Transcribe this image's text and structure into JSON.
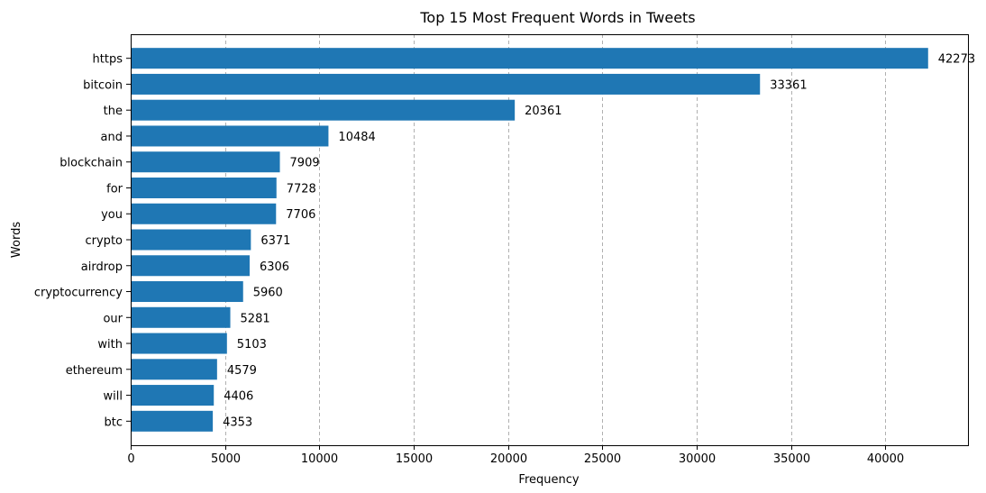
{
  "chart_data": {
    "type": "bar",
    "orientation": "horizontal",
    "title": "Top 15 Most Frequent Words in Tweets",
    "xlabel": "Frequency",
    "ylabel": "Words",
    "categories": [
      "https",
      "bitcoin",
      "the",
      "and",
      "blockchain",
      "for",
      "you",
      "crypto",
      "airdrop",
      "cryptocurrency",
      "our",
      "with",
      "ethereum",
      "will",
      "btc"
    ],
    "values": [
      42273,
      33361,
      20361,
      10484,
      7909,
      7728,
      7706,
      6371,
      6306,
      5960,
      5281,
      5103,
      4579,
      4406,
      4353
    ],
    "xlim": [
      0,
      44386
    ],
    "xticks": [
      0,
      5000,
      10000,
      15000,
      20000,
      25000,
      30000,
      35000,
      40000
    ],
    "xtick_labels": [
      "0",
      "5000",
      "10000",
      "15000",
      "20000",
      "25000",
      "30000",
      "35000",
      "40000"
    ],
    "grid": "x-axis dashed",
    "bar_color": "#1f77b4"
  }
}
